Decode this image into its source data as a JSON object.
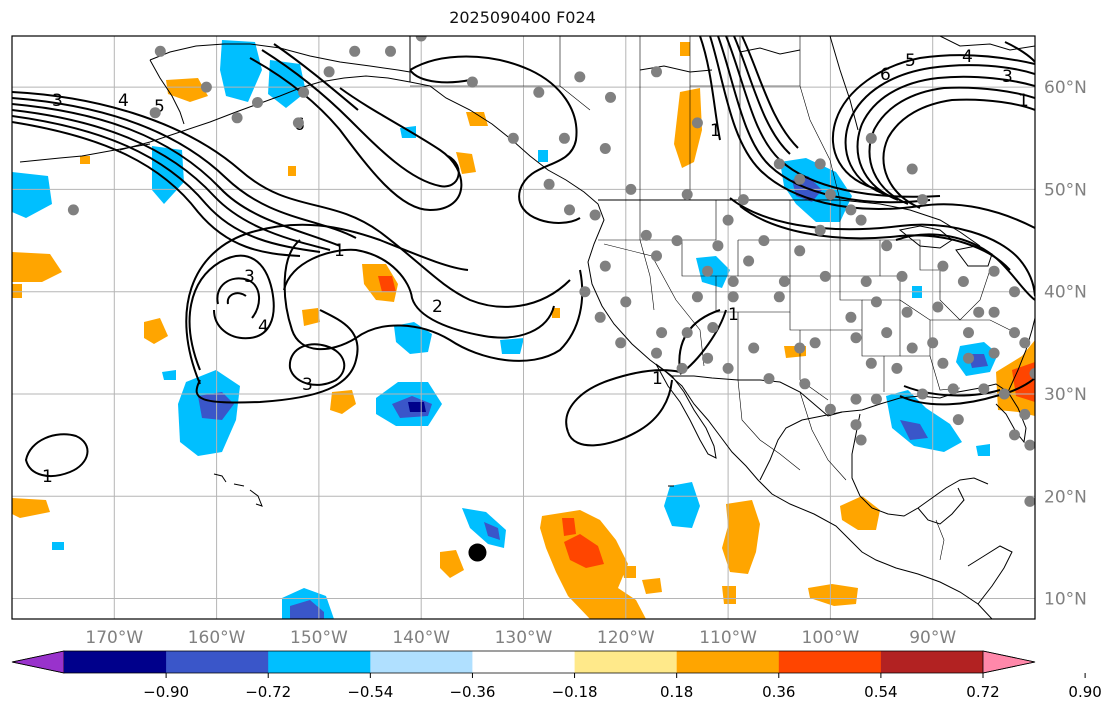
{
  "title": "2025090400 F024",
  "map": {
    "lon_range": [
      -180,
      -80
    ],
    "lat_range": [
      8,
      65
    ],
    "lon_ticks": [
      {
        "value": -170,
        "label": "170°W"
      },
      {
        "value": -160,
        "label": "160°W"
      },
      {
        "value": -150,
        "label": "150°W"
      },
      {
        "value": -140,
        "label": "140°W"
      },
      {
        "value": -130,
        "label": "130°W"
      },
      {
        "value": -120,
        "label": "120°W"
      },
      {
        "value": -110,
        "label": "110°W"
      },
      {
        "value": -100,
        "label": "100°W"
      },
      {
        "value": -90,
        "label": "90°W"
      }
    ],
    "lat_ticks": [
      {
        "value": 10,
        "label": "10°N"
      },
      {
        "value": 20,
        "label": "20°N"
      },
      {
        "value": 30,
        "label": "30°N"
      },
      {
        "value": 40,
        "label": "40°N"
      },
      {
        "value": 50,
        "label": "50°N"
      },
      {
        "value": 60,
        "label": "60°N"
      }
    ],
    "contour_labels": [
      "1",
      "2",
      "3",
      "4",
      "5",
      "6"
    ],
    "station_marker": {
      "lon": -134.5,
      "lat": 14.5,
      "label": "point-marker"
    }
  },
  "colorbar": {
    "colors": [
      "#9932cc",
      "#00008b",
      "#3a56c9",
      "#00bfff",
      "#b0e0ff",
      "#ffffff",
      "#ffe98a",
      "#ffa500",
      "#ff4500",
      "#b22222",
      "#ff88aa"
    ],
    "ticks": [
      "−0.90",
      "−0.72",
      "−0.54",
      "−0.36",
      "−0.18",
      "0.18",
      "0.36",
      "0.54",
      "0.72",
      "0.90"
    ]
  },
  "colors": {
    "grid": "#b5b5b5",
    "tick_label": "#808080",
    "contour": "#000000",
    "station": "#808080"
  }
}
